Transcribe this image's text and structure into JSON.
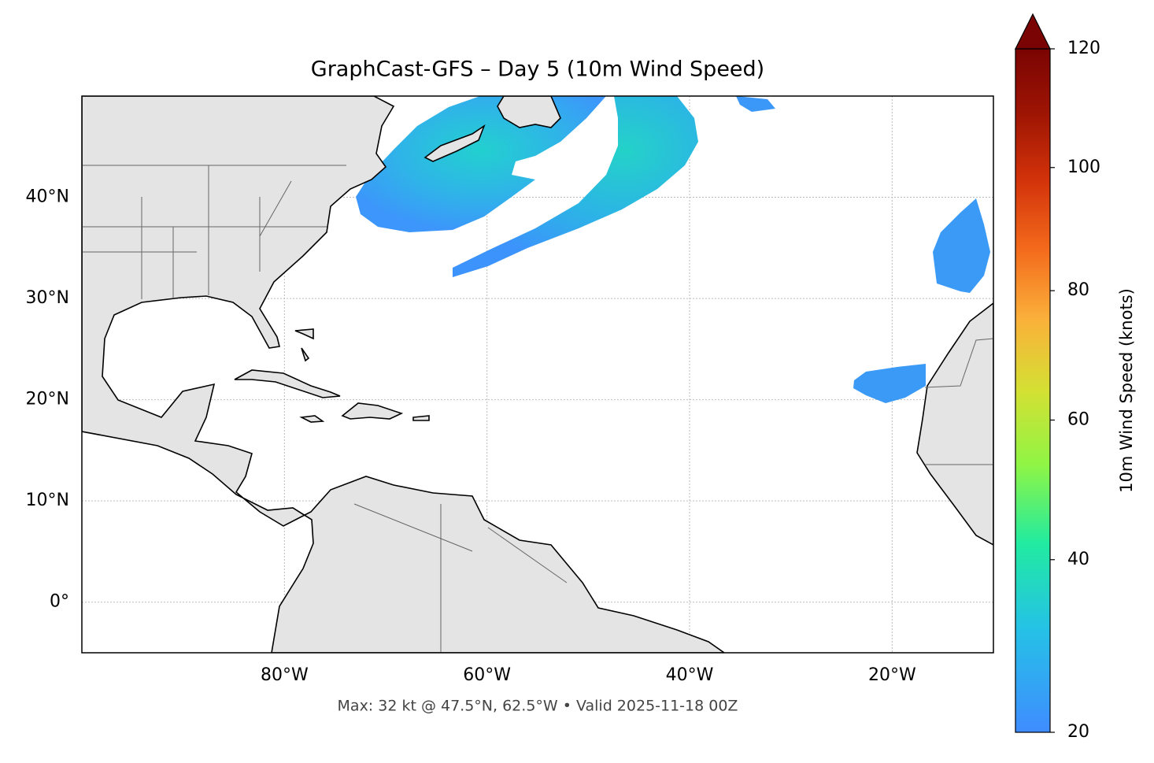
{
  "chart_data": {
    "type": "map",
    "title": "GraphCast-GFS – Day 5 (10m Wind Speed)",
    "footnote": "Max: 32 kt @ 47.5°N, 62.5°W • Valid 2025-11-18 00Z",
    "xlim": [
      -100,
      -10
    ],
    "ylim": [
      -5,
      50
    ],
    "xticks": [
      {
        "value": -80,
        "label": "80°W"
      },
      {
        "value": -60,
        "label": "60°W"
      },
      {
        "value": -40,
        "label": "40°W"
      },
      {
        "value": -20,
        "label": "20°W"
      }
    ],
    "yticks": [
      {
        "value": 0,
        "label": "0°"
      },
      {
        "value": 10,
        "label": "10°N"
      },
      {
        "value": 20,
        "label": "20°N"
      },
      {
        "value": 30,
        "label": "30°N"
      },
      {
        "value": 40,
        "label": "40°N"
      }
    ],
    "grid": true,
    "colorbar": {
      "label": "10m Wind Speed (knots)",
      "lim": [
        20,
        120
      ],
      "ticks": [
        20,
        40,
        60,
        80,
        100,
        120
      ],
      "norm": "power",
      "gamma": 0.855,
      "extend": "max",
      "colors": [
        "#3f8cff",
        "#25c2e6",
        "#21eba0",
        "#8ff545",
        "#d4e033",
        "#fbb03a",
        "#f36a1c",
        "#d3330a",
        "#9e1503",
        "#7a0403"
      ]
    }
  }
}
